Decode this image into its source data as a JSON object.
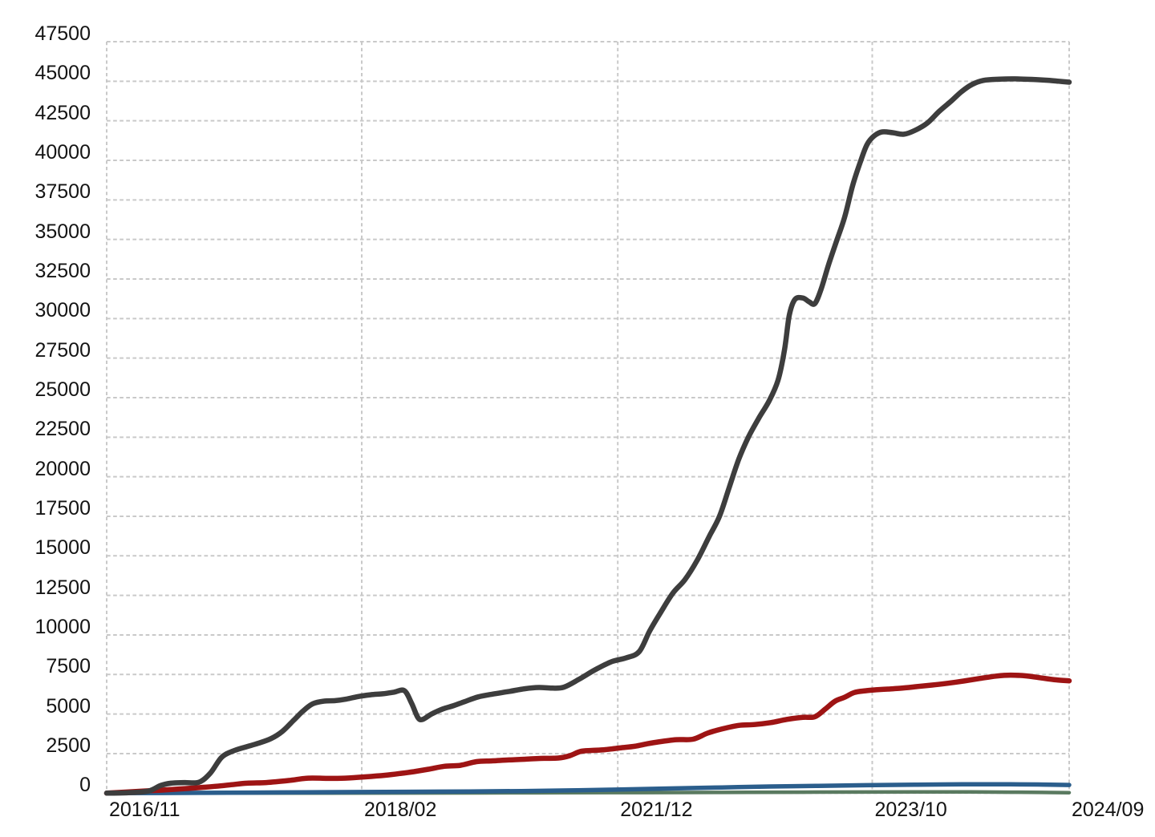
{
  "chart_data": {
    "type": "line",
    "title": "",
    "legend": "none",
    "grid": "dashed",
    "background": "#ffffff",
    "text_color": "#141414",
    "grid_color": "#c9c9c9",
    "x_axis": {
      "tick_labels": [
        "2016/11",
        "2018/02",
        "2021/12",
        "2023/10",
        "2024/09"
      ],
      "tick_positions": [
        0,
        0.265,
        0.531,
        0.7954,
        1.0
      ],
      "unit": "fraction_of_plot_width"
    },
    "y_axis": {
      "min": 0,
      "max": 47500,
      "tick_step": 2500,
      "tick_labels": [
        "0",
        "2500",
        "5000",
        "7500",
        "10000",
        "12500",
        "15000",
        "17500",
        "20000",
        "22500",
        "25000",
        "27500",
        "30000",
        "32500",
        "35000",
        "37500",
        "40000",
        "42500",
        "45000",
        "47500"
      ]
    },
    "series": [
      {
        "name": "sage-green-line",
        "color": "#5a7a60",
        "stroke_width": 4.5,
        "points": [
          [
            0,
            0
          ],
          [
            0.2225,
            5
          ],
          [
            0.3892,
            15
          ],
          [
            0.4725,
            25
          ],
          [
            0.5558,
            35
          ],
          [
            0.6392,
            48
          ],
          [
            0.7225,
            60
          ],
          [
            0.7892,
            70
          ],
          [
            0.8475,
            80
          ],
          [
            0.8975,
            75
          ],
          [
            0.9392,
            60
          ],
          [
            0.9725,
            45
          ],
          [
            1.0,
            30
          ]
        ]
      },
      {
        "name": "steel-blue-line",
        "color": "#2b5e8c",
        "stroke_width": 5.5,
        "points": [
          [
            0,
            0
          ],
          [
            0.0975,
            20
          ],
          [
            0.1808,
            45
          ],
          [
            0.2642,
            70
          ],
          [
            0.3475,
            95
          ],
          [
            0.4308,
            130
          ],
          [
            0.4892,
            180
          ],
          [
            0.5392,
            240
          ],
          [
            0.5892,
            300
          ],
          [
            0.6392,
            360
          ],
          [
            0.6892,
            420
          ],
          [
            0.7392,
            460
          ],
          [
            0.7892,
            500
          ],
          [
            0.8392,
            530
          ],
          [
            0.8892,
            555
          ],
          [
            0.9392,
            555
          ],
          [
            0.9725,
            540
          ],
          [
            1.0,
            515
          ]
        ]
      },
      {
        "name": "dark-red-line",
        "color": "#9e1414",
        "stroke_width": 6.5,
        "points": [
          [
            0,
            0
          ],
          [
            0.0267,
            90
          ],
          [
            0.0558,
            190
          ],
          [
            0.085,
            300
          ],
          [
            0.1125,
            430
          ],
          [
            0.1292,
            530
          ],
          [
            0.1458,
            630
          ],
          [
            0.1658,
            670
          ],
          [
            0.1892,
            800
          ],
          [
            0.2092,
            950
          ],
          [
            0.2292,
            930
          ],
          [
            0.2475,
            950
          ],
          [
            0.2683,
            1030
          ],
          [
            0.2892,
            1130
          ],
          [
            0.3058,
            1250
          ],
          [
            0.3192,
            1360
          ],
          [
            0.3342,
            1510
          ],
          [
            0.3508,
            1700
          ],
          [
            0.3675,
            1760
          ],
          [
            0.3842,
            1990
          ],
          [
            0.4008,
            2040
          ],
          [
            0.4175,
            2100
          ],
          [
            0.4358,
            2150
          ],
          [
            0.4542,
            2200
          ],
          [
            0.4692,
            2220
          ],
          [
            0.4808,
            2360
          ],
          [
            0.4925,
            2640
          ],
          [
            0.5042,
            2700
          ],
          [
            0.5183,
            2750
          ],
          [
            0.5333,
            2860
          ],
          [
            0.5483,
            2960
          ],
          [
            0.5608,
            3110
          ],
          [
            0.5733,
            3240
          ],
          [
            0.5917,
            3380
          ],
          [
            0.6092,
            3410
          ],
          [
            0.6242,
            3790
          ],
          [
            0.64,
            4070
          ],
          [
            0.6567,
            4280
          ],
          [
            0.6733,
            4340
          ],
          [
            0.69,
            4460
          ],
          [
            0.7067,
            4660
          ],
          [
            0.7233,
            4790
          ],
          [
            0.7358,
            4830
          ],
          [
            0.7467,
            5320
          ],
          [
            0.7567,
            5810
          ],
          [
            0.7667,
            6060
          ],
          [
            0.7767,
            6360
          ],
          [
            0.7883,
            6470
          ],
          [
            0.7992,
            6530
          ],
          [
            0.8117,
            6580
          ],
          [
            0.8242,
            6630
          ],
          [
            0.8408,
            6730
          ],
          [
            0.8575,
            6830
          ],
          [
            0.8742,
            6950
          ],
          [
            0.8908,
            7090
          ],
          [
            0.9075,
            7250
          ],
          [
            0.9242,
            7400
          ],
          [
            0.9392,
            7460
          ],
          [
            0.9558,
            7410
          ],
          [
            0.9725,
            7270
          ],
          [
            0.9867,
            7160
          ],
          [
            1.0,
            7100
          ]
        ]
      },
      {
        "name": "charcoal-line",
        "color": "#3d3d3d",
        "stroke_width": 6.5,
        "points": [
          [
            0,
            0
          ],
          [
            0.0225,
            30
          ],
          [
            0.0433,
            130
          ],
          [
            0.0558,
            480
          ],
          [
            0.0667,
            630
          ],
          [
            0.0808,
            670
          ],
          [
            0.0958,
            690
          ],
          [
            0.1075,
            1250
          ],
          [
            0.1192,
            2250
          ],
          [
            0.1308,
            2650
          ],
          [
            0.1433,
            2900
          ],
          [
            0.1575,
            3150
          ],
          [
            0.1708,
            3450
          ],
          [
            0.1825,
            3900
          ],
          [
            0.1942,
            4600
          ],
          [
            0.2042,
            5200
          ],
          [
            0.2142,
            5650
          ],
          [
            0.2258,
            5820
          ],
          [
            0.2375,
            5850
          ],
          [
            0.2492,
            5950
          ],
          [
            0.2608,
            6100
          ],
          [
            0.2742,
            6220
          ],
          [
            0.2867,
            6280
          ],
          [
            0.2983,
            6380
          ],
          [
            0.3092,
            6480
          ],
          [
            0.3167,
            5700
          ],
          [
            0.3233,
            4780
          ],
          [
            0.3283,
            4660
          ],
          [
            0.3375,
            5000
          ],
          [
            0.3492,
            5320
          ],
          [
            0.3608,
            5540
          ],
          [
            0.3725,
            5800
          ],
          [
            0.3858,
            6080
          ],
          [
            0.4008,
            6260
          ],
          [
            0.4175,
            6420
          ],
          [
            0.4342,
            6600
          ],
          [
            0.4492,
            6680
          ],
          [
            0.4625,
            6640
          ],
          [
            0.475,
            6700
          ],
          [
            0.4908,
            7200
          ],
          [
            0.5075,
            7800
          ],
          [
            0.5242,
            8300
          ],
          [
            0.54,
            8560
          ],
          [
            0.5533,
            8950
          ],
          [
            0.5642,
            10250
          ],
          [
            0.5758,
            11450
          ],
          [
            0.5883,
            12650
          ],
          [
            0.6008,
            13500
          ],
          [
            0.6133,
            14700
          ],
          [
            0.6258,
            16200
          ],
          [
            0.6367,
            17500
          ],
          [
            0.6467,
            19300
          ],
          [
            0.6567,
            21100
          ],
          [
            0.6667,
            22500
          ],
          [
            0.6775,
            23700
          ],
          [
            0.6883,
            24800
          ],
          [
            0.6975,
            26100
          ],
          [
            0.7042,
            28000
          ],
          [
            0.7092,
            30200
          ],
          [
            0.715,
            31200
          ],
          [
            0.7233,
            31300
          ],
          [
            0.73,
            31050
          ],
          [
            0.7358,
            30950
          ],
          [
            0.7425,
            31900
          ],
          [
            0.75,
            33400
          ],
          [
            0.7583,
            34900
          ],
          [
            0.7667,
            36400
          ],
          [
            0.775,
            38400
          ],
          [
            0.7833,
            39950
          ],
          [
            0.79,
            41000
          ],
          [
            0.7975,
            41550
          ],
          [
            0.8058,
            41800
          ],
          [
            0.8167,
            41750
          ],
          [
            0.8283,
            41650
          ],
          [
            0.84,
            41900
          ],
          [
            0.8525,
            42350
          ],
          [
            0.865,
            43100
          ],
          [
            0.8775,
            43750
          ],
          [
            0.8883,
            44350
          ],
          [
            0.8992,
            44800
          ],
          [
            0.9108,
            45050
          ],
          [
            0.9275,
            45130
          ],
          [
            0.9442,
            45150
          ],
          [
            0.9608,
            45120
          ],
          [
            0.9775,
            45060
          ],
          [
            0.9892,
            45000
          ],
          [
            1.0,
            44940
          ]
        ]
      }
    ]
  }
}
